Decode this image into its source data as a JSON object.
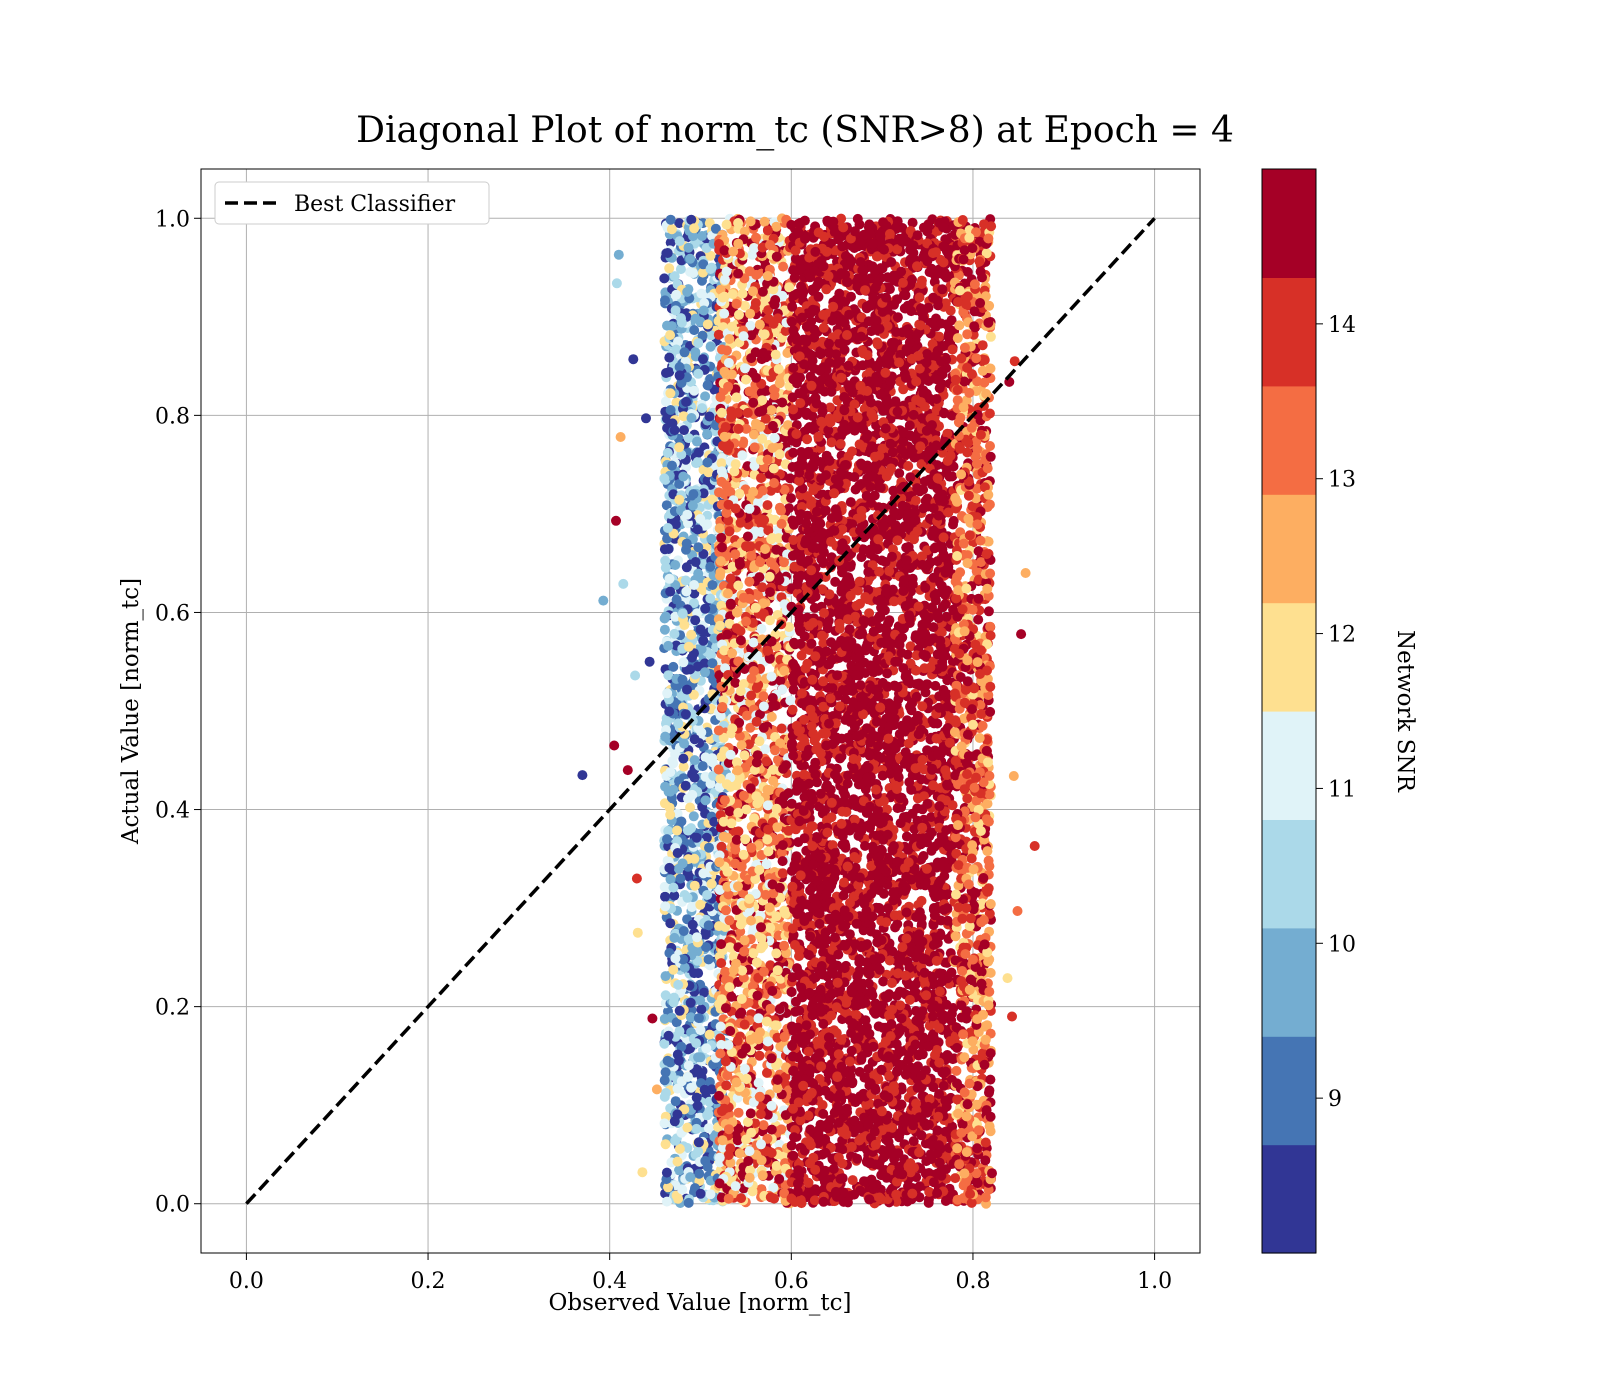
{
  "chart_data": {
    "type": "scatter",
    "title": "Diagonal Plot of norm_tc (SNR>8) at Epoch = 4",
    "xlabel": "Observed Value [norm_tc]",
    "ylabel": "Actual Value [norm_tc]",
    "xlim": [
      -0.05,
      1.05
    ],
    "ylim": [
      -0.05,
      1.05
    ],
    "xticks": [
      0.0,
      0.2,
      0.4,
      0.6,
      0.8,
      1.0
    ],
    "yticks": [
      0.0,
      0.2,
      0.4,
      0.6,
      0.8,
      1.0
    ],
    "grid": true,
    "legend": {
      "placement": "top-left",
      "entries": [
        {
          "label": "Best Classifier",
          "style": "dashed",
          "color": "#000000"
        }
      ]
    },
    "reference_line": {
      "name": "Best Classifier",
      "x": [
        0.0,
        1.0
      ],
      "y": [
        0.0,
        1.0
      ],
      "style": "dashed",
      "color": "#000000"
    },
    "colorbar": {
      "label": "Network SNR",
      "range": [
        8,
        15
      ],
      "ticks": [
        9,
        10,
        11,
        12,
        13,
        14
      ],
      "colors": [
        "#313695",
        "#4575b4",
        "#74add1",
        "#abd9e9",
        "#e0f3f8",
        "#fee090",
        "#fdae61",
        "#f46d43",
        "#d73027",
        "#a50026"
      ]
    },
    "series": [
      {
        "marker": "circle",
        "color_by": "Network SNR",
        "clusters": [
          {
            "x_range": [
              0.46,
              0.53
            ],
            "y_range": [
              0.0,
              1.0
            ],
            "snr_range": [
              8,
              12
            ]
          },
          {
            "x_range": [
              0.52,
              0.6
            ],
            "y_range": [
              0.0,
              1.0
            ],
            "snr_range": [
              11,
              15
            ]
          },
          {
            "x_range": [
              0.6,
              0.78
            ],
            "y_range": [
              0.0,
              1.0
            ],
            "snr_range": [
              14,
              15
            ]
          },
          {
            "x_range": [
              0.78,
              0.82
            ],
            "y_range": [
              0.0,
              1.0
            ],
            "snr_range": [
              12,
              15
            ]
          }
        ],
        "points": [
          {
            "x": 0.37,
            "y": 0.435,
            "snr": 8.3
          },
          {
            "x": 0.393,
            "y": 0.612,
            "snr": 9.8
          },
          {
            "x": 0.405,
            "y": 0.465,
            "snr": 14.8
          },
          {
            "x": 0.407,
            "y": 0.693,
            "snr": 14.8
          },
          {
            "x": 0.408,
            "y": 0.934,
            "snr": 10.6
          },
          {
            "x": 0.41,
            "y": 0.963,
            "snr": 9.8
          },
          {
            "x": 0.412,
            "y": 0.778,
            "snr": 12.5
          },
          {
            "x": 0.415,
            "y": 0.629,
            "snr": 10.6
          },
          {
            "x": 0.42,
            "y": 0.44,
            "snr": 14.8
          },
          {
            "x": 0.426,
            "y": 0.857,
            "snr": 8.3
          },
          {
            "x": 0.428,
            "y": 0.536,
            "snr": 10.6
          },
          {
            "x": 0.43,
            "y": 0.33,
            "snr": 14.2
          },
          {
            "x": 0.431,
            "y": 0.275,
            "snr": 12.2
          },
          {
            "x": 0.436,
            "y": 0.032,
            "snr": 12.2
          },
          {
            "x": 0.44,
            "y": 0.797,
            "snr": 8.3
          },
          {
            "x": 0.444,
            "y": 0.55,
            "snr": 8.3
          },
          {
            "x": 0.447,
            "y": 0.188,
            "snr": 14.8
          },
          {
            "x": 0.452,
            "y": 0.116,
            "snr": 12.6
          },
          {
            "x": 0.846,
            "y": 0.855,
            "snr": 14.2
          },
          {
            "x": 0.84,
            "y": 0.834,
            "snr": 14.8
          },
          {
            "x": 0.858,
            "y": 0.64,
            "snr": 12.6
          },
          {
            "x": 0.853,
            "y": 0.578,
            "snr": 14.8
          },
          {
            "x": 0.868,
            "y": 0.363,
            "snr": 14.2
          },
          {
            "x": 0.849,
            "y": 0.297,
            "snr": 13.3
          },
          {
            "x": 0.843,
            "y": 0.19,
            "snr": 14.2
          },
          {
            "x": 0.82,
            "y": 0.992,
            "snr": 14.2
          },
          {
            "x": 0.821,
            "y": 0.031,
            "snr": 14.8
          },
          {
            "x": 0.815,
            "y": 0.095,
            "snr": 14.8
          },
          {
            "x": 0.845,
            "y": 0.434,
            "snr": 12.6
          },
          {
            "x": 0.838,
            "y": 0.229,
            "snr": 12.0
          },
          {
            "x": 0.81,
            "y": 0.94,
            "snr": 14.8
          }
        ]
      }
    ]
  }
}
